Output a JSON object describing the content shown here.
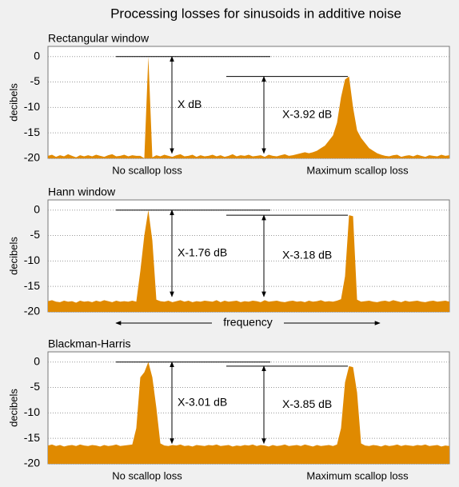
{
  "title": "Processing losses for sinusoids in additive noise",
  "chart_data": [
    {
      "type": "area",
      "title": "Rectangular window",
      "ylabel": "decibels",
      "color": "#e08a00",
      "ylim": [
        -20,
        2
      ],
      "yticks": [
        0,
        -5,
        -10,
        -15,
        -20
      ],
      "grid": true,
      "values": [
        -19.5,
        -19.3,
        -19.7,
        -19.4,
        -19.6,
        -19.2,
        -19.5,
        -19.8,
        -19.4,
        -19.6,
        -19.4,
        -19.6,
        -19.3,
        -19.5,
        -19.7,
        -19.4,
        -19.2,
        -19.6,
        -19.5,
        -19.3,
        -19.6,
        -19.4,
        -19.5,
        -19.5,
        -20,
        0,
        -19.8,
        -19.4,
        -19.6,
        -19.3,
        -19.5,
        -19.7,
        -19.4,
        -19.2,
        -19.6,
        -19.5,
        -19.3,
        -19.7,
        -19.4,
        -19.6,
        -19.5,
        -19.3,
        -19.6,
        -19.4,
        -19.7,
        -19.5,
        -19.2,
        -19.6,
        -19.4,
        -19.5,
        -19.3,
        -19.6,
        -19.5,
        -19.4,
        -19.7,
        -19.3,
        -19.5,
        -19.6,
        -19.4,
        -19.2,
        -19.5,
        -19.4,
        -19.2,
        -19.0,
        -18.8,
        -19,
        -18.8,
        -18.5,
        -18,
        -17.5,
        -16.5,
        -15.5,
        -13,
        -8,
        -4.5,
        -3.92,
        -10,
        -14.5,
        -16,
        -17,
        -18,
        -18.5,
        -19,
        -19.3,
        -19.5,
        -19.6,
        -19.4,
        -19.3,
        -19.7,
        -19.5,
        -19.4,
        -19.6,
        -19.3,
        -19.5,
        -19.7,
        -19.4,
        -19.5,
        -19.6,
        -19.3,
        -19.5,
        -19.4
      ],
      "annotations": [
        {
          "text": "X dB",
          "top": 0,
          "bottom": -19
        },
        {
          "text": "X-3.92 dB",
          "top": -3.92,
          "bottom": -19
        }
      ],
      "peak_labels": [
        "No scallop loss",
        "Maximum scallop loss"
      ]
    },
    {
      "type": "area",
      "title": "Hann window",
      "ylabel": "decibels",
      "color": "#e08a00",
      "ylim": [
        -20,
        2
      ],
      "yticks": [
        0,
        -5,
        -10,
        -15,
        -20
      ],
      "grid": true,
      "values": [
        -17.9,
        -17.7,
        -18,
        -18.1,
        -17.8,
        -18,
        -17.9,
        -18.2,
        -17.8,
        -18,
        -17.9,
        -18.1,
        -17.8,
        -18,
        -17.7,
        -17.9,
        -18.1,
        -17.8,
        -18,
        -17.9,
        -18,
        -17.8,
        -18,
        -12,
        -5,
        0,
        -6,
        -17.6,
        -17.9,
        -18,
        -17.8,
        -18.1,
        -17.9,
        -17.7,
        -18,
        -17.8,
        -18.1,
        -17.9,
        -18,
        -17.8,
        -17.9,
        -18,
        -17.7,
        -18.1,
        -17.8,
        -18,
        -17.9,
        -17.8,
        -18.1,
        -17.9,
        -18,
        -17.8,
        -17.9,
        -18.1,
        -17.7,
        -18,
        -17.9,
        -17.8,
        -18,
        -18.1,
        -17.9,
        -17.8,
        -18,
        -17.9,
        -18.1,
        -17.8,
        -18,
        -17.9,
        -17.7,
        -18,
        -17.9,
        -18,
        -17.8,
        -17.5,
        -13,
        -1,
        -1.2,
        -17.6,
        -18,
        -17.9,
        -17.8,
        -18,
        -18.1,
        -17.9,
        -17.8,
        -18,
        -17.7,
        -17.9,
        -18.1,
        -17.8,
        -18,
        -17.9,
        -17.8,
        -18,
        -18.1,
        -17.9,
        -17.8,
        -18,
        -17.9,
        -17.8,
        -18
      ],
      "annotations": [
        {
          "text": "X-1.76 dB",
          "top": 0,
          "bottom": -17
        },
        {
          "text": "X-3.18 dB",
          "top": -1,
          "bottom": -17
        }
      ],
      "xlabel": "frequency"
    },
    {
      "type": "area",
      "title": "Blackman-Harris",
      "ylabel": "decibels",
      "color": "#e08a00",
      "ylim": [
        -20,
        2
      ],
      "yticks": [
        0,
        -5,
        -10,
        -15,
        -20
      ],
      "grid": true,
      "values": [
        -16.4,
        -16.2,
        -16.5,
        -16.3,
        -16.6,
        -16.4,
        -16.3,
        -16.5,
        -16.2,
        -16.4,
        -16.5,
        -16.3,
        -16.4,
        -16.6,
        -16.3,
        -16.5,
        -16.4,
        -16.2,
        -16.5,
        -16.4,
        -16.3,
        -16.2,
        -13,
        -3,
        -2,
        0,
        -3,
        -9,
        -16,
        -16.4,
        -16.5,
        -16.3,
        -16.4,
        -16.2,
        -16.5,
        -16.4,
        -16.6,
        -16.3,
        -16.4,
        -16.5,
        -16.3,
        -16.4,
        -16.2,
        -16.5,
        -16.4,
        -16.3,
        -16.6,
        -16.4,
        -16.5,
        -16.3,
        -16.4,
        -16.2,
        -16.5,
        -16.3,
        -16.4,
        -16.6,
        -16.3,
        -16.5,
        -16.4,
        -16.2,
        -16.5,
        -16.4,
        -16.3,
        -16.5,
        -16.2,
        -16.4,
        -16.6,
        -16.3,
        -16.5,
        -16.4,
        -16.3,
        -16.5,
        -16.2,
        -13,
        -4,
        -0.8,
        -1,
        -6,
        -16,
        -16.4,
        -16.5,
        -16.3,
        -16.4,
        -16.6,
        -16.3,
        -16.5,
        -16.4,
        -16.2,
        -16.5,
        -16.3,
        -16.4,
        -16.5,
        -16.3,
        -16.4,
        -16.2,
        -16.5,
        -16.4,
        -16.3,
        -16.6,
        -16.4,
        -16.5
      ],
      "annotations": [
        {
          "text": "X-3.01 dB",
          "top": 0,
          "bottom": -16
        },
        {
          "text": "X-3.85 dB",
          "top": -0.8,
          "bottom": -16
        }
      ],
      "peak_labels": [
        "No scallop loss",
        "Maximum scallop loss"
      ]
    }
  ]
}
